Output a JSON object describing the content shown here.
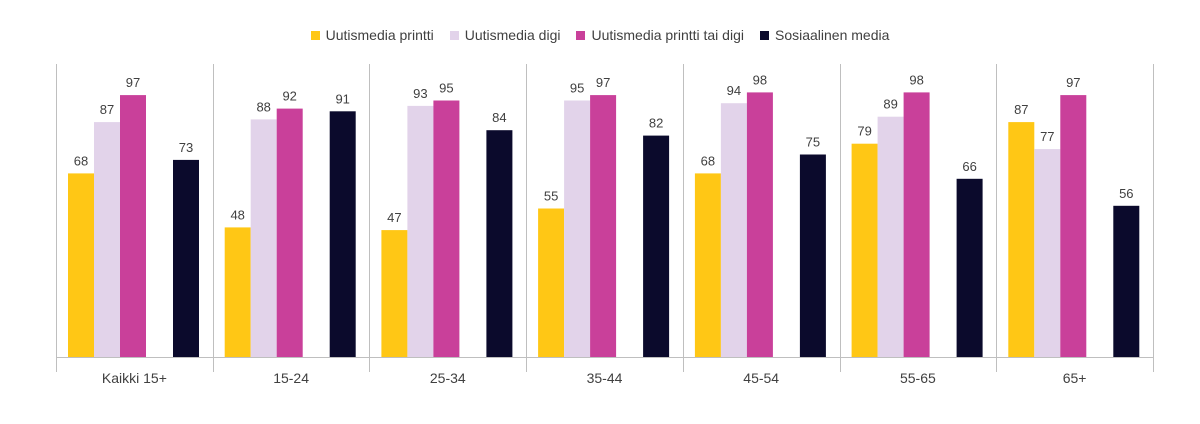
{
  "chart_data": {
    "type": "bar",
    "title": "",
    "xlabel": "",
    "ylabel": "",
    "ylim": [
      0,
      105
    ],
    "grid": false,
    "legend_position": "top",
    "categories": [
      "Kaikki 15+",
      "15-24",
      "25-34",
      "35-44",
      "45-54",
      "55-65",
      "65+"
    ],
    "series": [
      {
        "name": "Uutismedia printti",
        "color": "#FFC715",
        "values": [
          68,
          48,
          47,
          55,
          68,
          79,
          87
        ]
      },
      {
        "name": "Uutismedia digi",
        "color": "#E2D3EA",
        "values": [
          87,
          88,
          93,
          95,
          94,
          89,
          77
        ]
      },
      {
        "name": "Uutismedia printti tai digi",
        "color": "#C9409A",
        "values": [
          97,
          92,
          95,
          97,
          98,
          98,
          97
        ]
      },
      {
        "name": "Sosiaalinen media",
        "color": "#0B0A2C",
        "values": [
          73,
          91,
          84,
          82,
          75,
          66,
          56
        ]
      }
    ]
  }
}
